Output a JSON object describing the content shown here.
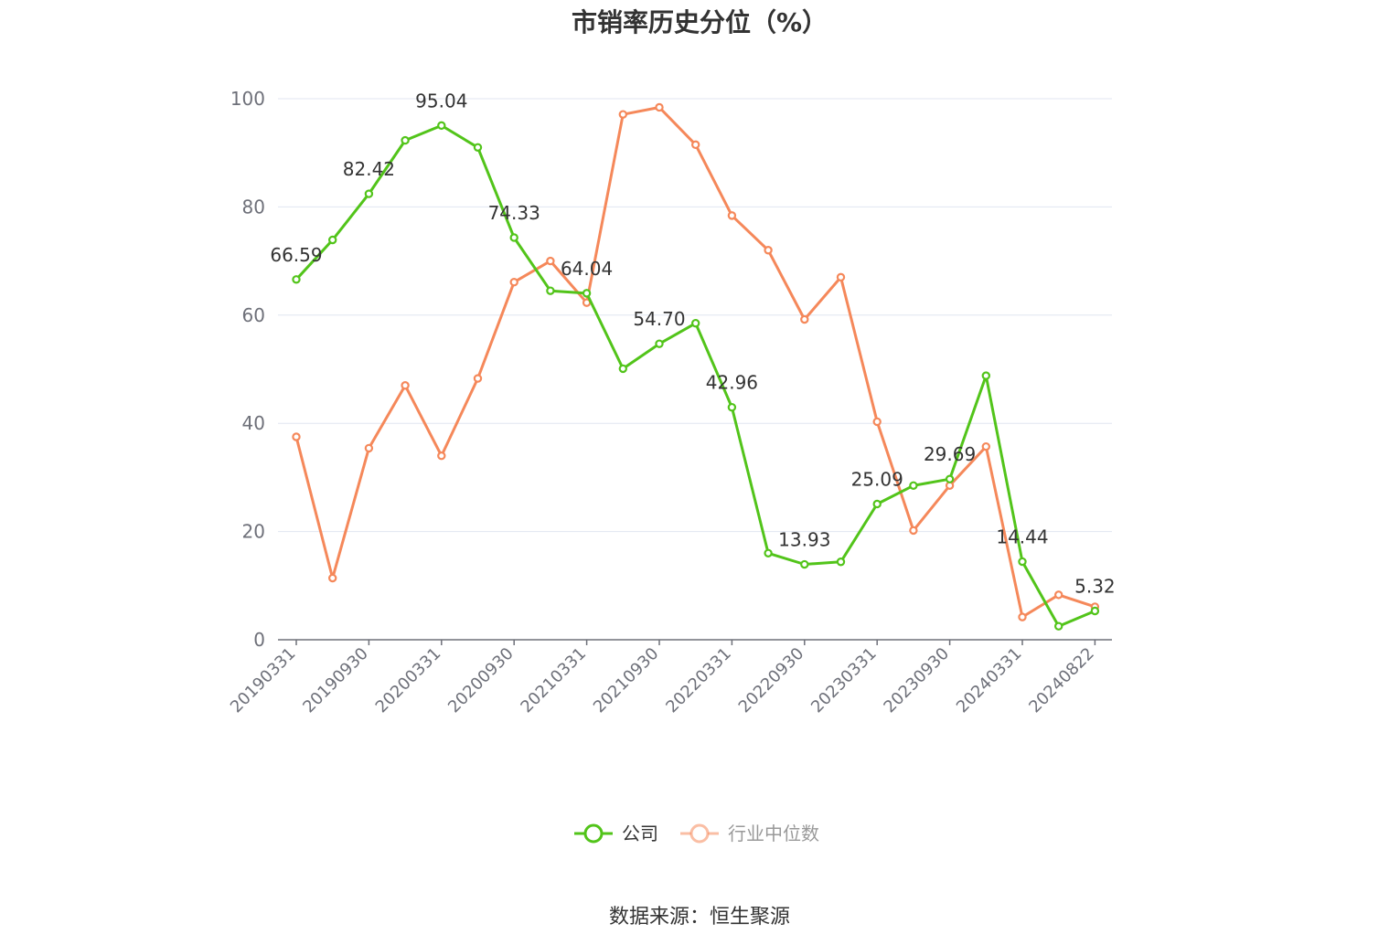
{
  "chart_data": {
    "type": "line",
    "title": "市销率历史分位（%）",
    "source": "数据来源：恒生聚源",
    "ylim": [
      0,
      100
    ],
    "yticks": [
      "0",
      "20",
      "40",
      "60",
      "80",
      "100"
    ],
    "xtick_labels": [
      "20190331",
      "20190930",
      "20200331",
      "20200930",
      "20210331",
      "20210930",
      "20220331",
      "20220930",
      "20230331",
      "20230930",
      "20240331",
      "20240822"
    ],
    "grid": true,
    "legend_position": "bottom",
    "series": [
      {
        "name": "公司",
        "color": "#52c41a",
        "values": [
          66.59,
          73.9,
          82.42,
          92.3,
          95.04,
          91.0,
          74.33,
          64.5,
          64.04,
          50.1,
          54.7,
          58.5,
          42.96,
          16.0,
          13.93,
          14.4,
          25.09,
          28.5,
          29.69,
          48.8,
          14.44,
          2.5,
          5.32
        ],
        "labels": [
          "66.59",
          "",
          "82.42",
          "",
          "95.04",
          "",
          "74.33",
          "",
          "64.04",
          "",
          "54.70",
          "",
          "42.96",
          "",
          "13.93",
          "",
          "25.09",
          "",
          "29.69",
          "",
          "14.44",
          "",
          "5.32"
        ]
      },
      {
        "name": "行业中位数",
        "color": "#f5885a",
        "values": [
          37.5,
          11.4,
          35.4,
          47.0,
          34.0,
          48.3,
          66.1,
          70.0,
          62.3,
          97.1,
          98.4,
          91.5,
          78.4,
          72.0,
          59.2,
          67.0,
          40.3,
          20.2,
          28.5,
          35.7,
          4.2,
          8.3,
          6.1
        ]
      }
    ]
  }
}
